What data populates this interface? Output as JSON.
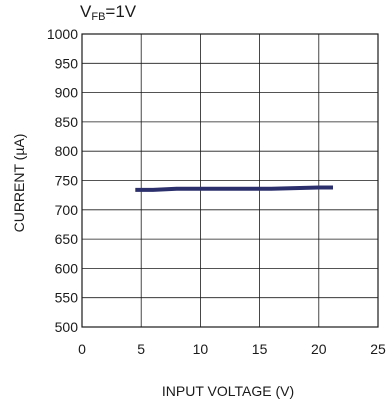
{
  "chart_data": {
    "type": "line",
    "title_main": "V",
    "title_sub": "FB",
    "title_rest": "=1V",
    "xlabel": "INPUT VOLTAGE (V)",
    "ylabel": "CURRENT (µA)",
    "xlim": [
      0,
      25
    ],
    "ylim": [
      500,
      1000
    ],
    "xticks": [
      "0",
      "5",
      "10",
      "15",
      "20",
      "25"
    ],
    "yticks": [
      "500",
      "550",
      "600",
      "650",
      "700",
      "750",
      "800",
      "850",
      "900",
      "950",
      "1000"
    ],
    "grid": true,
    "series": [
      {
        "color": "#2b2f6b",
        "x": [
          4.5,
          6,
          8,
          10,
          12,
          14,
          16,
          18,
          20,
          21.2
        ],
        "y": [
          734,
          734,
          736,
          736,
          736,
          736,
          736,
          737,
          738,
          738
        ]
      }
    ]
  }
}
